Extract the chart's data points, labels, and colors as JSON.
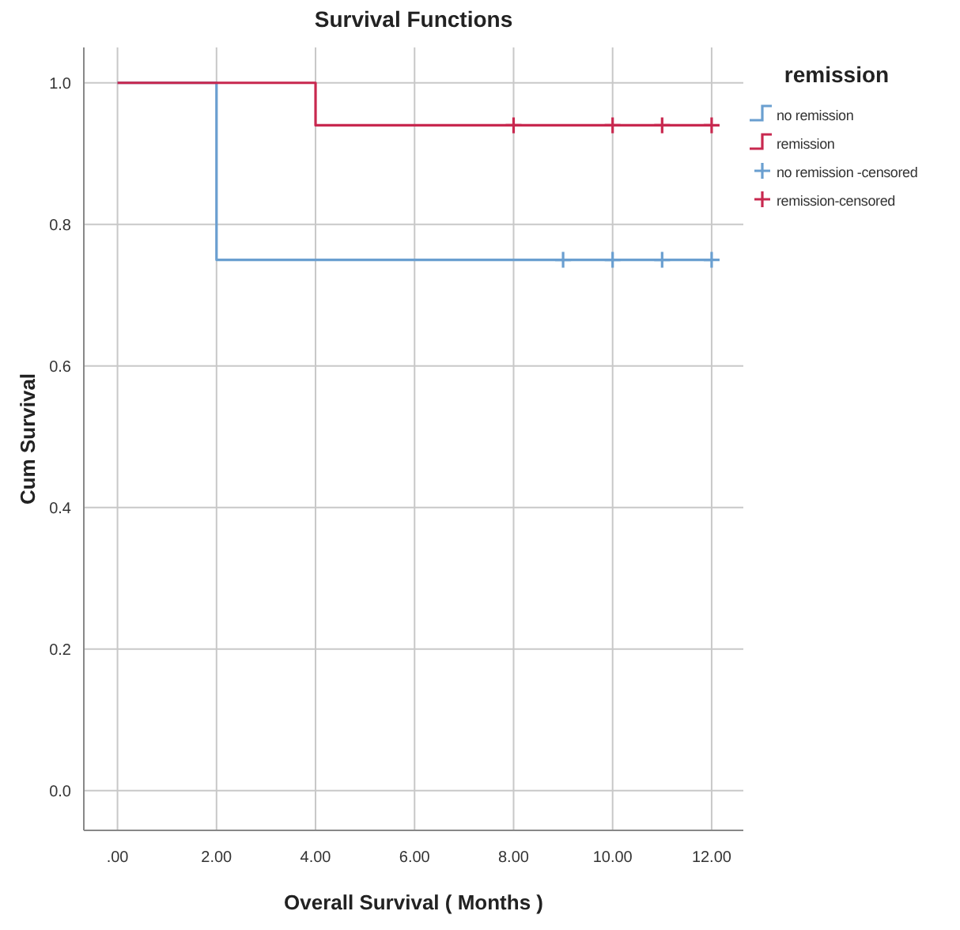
{
  "chart_data": {
    "type": "step",
    "title": "Survival Functions",
    "xlabel": "Overall Survival ( Months )",
    "ylabel": "Cum Survival",
    "legend_title": "remission",
    "xlim": [
      -0.68,
      12.64
    ],
    "xticks": [
      {
        "value": 0,
        "label": ".00"
      },
      {
        "value": 2,
        "label": "2.00"
      },
      {
        "value": 4,
        "label": "4.00"
      },
      {
        "value": 6,
        "label": "6.00"
      },
      {
        "value": 8,
        "label": "8.00"
      },
      {
        "value": 10,
        "label": "10.00"
      },
      {
        "value": 12,
        "label": "12.00"
      }
    ],
    "ylim": [
      -0.056,
      1.05
    ],
    "yticks": [
      {
        "value": 0,
        "label": "0.0"
      },
      {
        "value": 0.2,
        "label": "0.2"
      },
      {
        "value": 0.4,
        "label": "0.4"
      },
      {
        "value": 0.6,
        "label": "0.6"
      },
      {
        "value": 0.8,
        "label": "0.8"
      },
      {
        "value": 1,
        "label": "1.0"
      }
    ],
    "grid": true,
    "legend": "right",
    "line_style": "solid",
    "series": [
      {
        "name": "no remission",
        "color": "#6a9fd0",
        "x": [
          0,
          2,
          12
        ],
        "values": [
          1,
          0.75,
          0.75
        ]
      },
      {
        "name": "remission",
        "color": "#c8284f",
        "x": [
          0,
          4,
          12
        ],
        "values": [
          1,
          0.94,
          0.94
        ]
      },
      {
        "name": "no remission -censored",
        "type": "scatter",
        "marker": "cross",
        "color": "#6a9fd0",
        "x": [
          9,
          10,
          11,
          12
        ],
        "values": [
          0.75,
          0.75,
          0.75,
          0.75
        ]
      },
      {
        "name": "remission-censored",
        "type": "scatter",
        "marker": "cross",
        "color": "#c8284f",
        "x": [
          8,
          10,
          11,
          12
        ],
        "values": [
          0.94,
          0.94,
          0.94,
          0.94
        ]
      }
    ]
  }
}
